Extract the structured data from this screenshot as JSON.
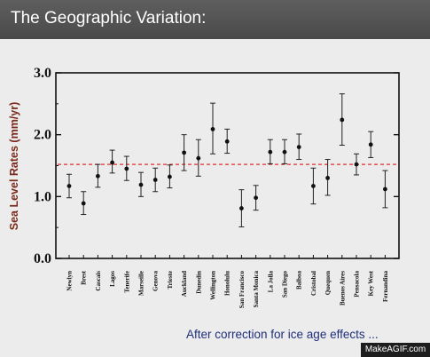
{
  "header": {
    "title": "The Geographic Variation:"
  },
  "footer": {
    "note": "After correction for ice age effects ..."
  },
  "watermark": {
    "text": "MakeAGIF.com"
  },
  "colors": {
    "header_bg": "#4f4f4f",
    "mean_line": "#e03030",
    "ylabel": "#7a2a1a",
    "note": "#1f2f7a"
  },
  "chart_data": {
    "type": "scatter",
    "title": "",
    "xlabel": "",
    "ylabel": "Sea Level Rates (mm/yr)",
    "ylim": [
      0.0,
      3.0
    ],
    "yticks": [
      "0.0",
      "1.0",
      "2.0",
      "3.0"
    ],
    "grid": false,
    "error_bars": true,
    "reference_line": {
      "value": 1.52,
      "style": "dashed"
    },
    "categories": [
      "Newlyn",
      "Brest",
      "Cascais",
      "Lagos",
      "Tenerife",
      "Marseille",
      "Genova",
      "Trieste",
      "Auckland",
      "Dunedin",
      "Wellington",
      "Honolulu",
      "San Francisco",
      "Santa Monica",
      "La Jolla",
      "San Diego",
      "Balboa",
      "Cristobal",
      "Quequen",
      "Buenos Aires",
      "Pensacola",
      "Key West",
      "Fernandina"
    ],
    "values": [
      1.17,
      0.89,
      1.33,
      1.55,
      1.45,
      1.19,
      1.27,
      1.32,
      1.71,
      1.62,
      2.09,
      1.89,
      0.81,
      0.98,
      1.72,
      1.72,
      1.8,
      1.17,
      1.3,
      2.24,
      1.52,
      1.84,
      1.12
    ],
    "err_low": [
      0.98,
      0.71,
      1.15,
      1.38,
      1.26,
      1.0,
      1.08,
      1.14,
      1.42,
      1.33,
      1.69,
      1.7,
      0.51,
      0.78,
      1.53,
      1.53,
      1.6,
      0.88,
      1.02,
      1.83,
      1.35,
      1.63,
      0.82
    ],
    "err_high": [
      1.36,
      1.08,
      1.52,
      1.75,
      1.65,
      1.39,
      1.46,
      1.51,
      2.0,
      1.92,
      2.51,
      2.09,
      1.11,
      1.18,
      1.92,
      1.92,
      2.01,
      1.46,
      1.6,
      2.66,
      1.69,
      2.05,
      1.42
    ]
  }
}
